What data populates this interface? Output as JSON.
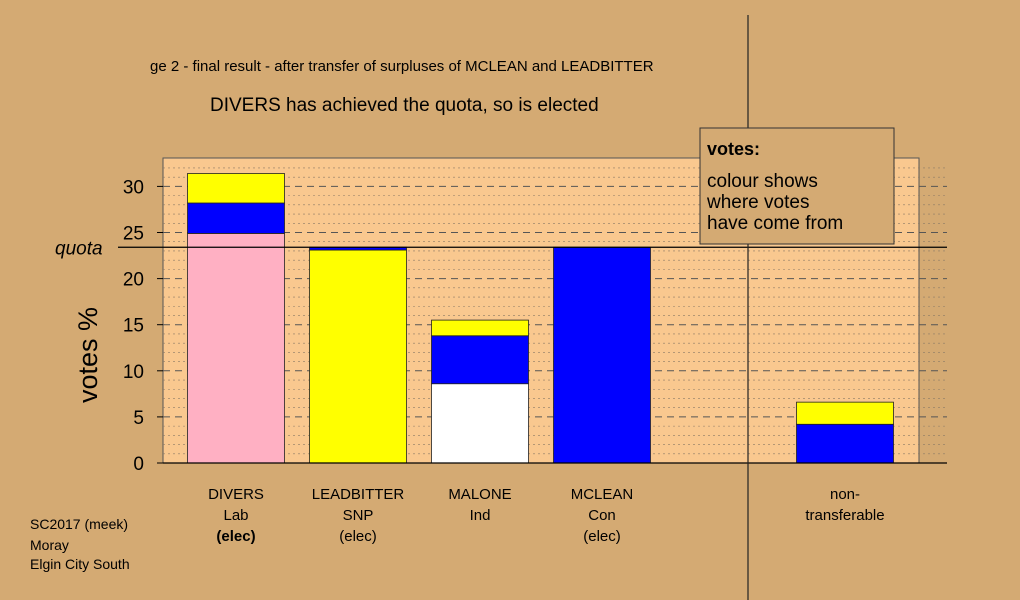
{
  "stage_title": "ge 2 - final result - after transfer of surpluses of MCLEAN and LEADBITTER",
  "subtitle": "DIVERS has achieved the quota, so is elected",
  "ylabel": "votes %",
  "quota_label": "quota",
  "legend": {
    "title": "votes:",
    "lines": [
      "colour shows",
      "where votes",
      "have come from"
    ]
  },
  "footer": [
    "SC2017 (meek)",
    "Moray",
    "Elgin City South"
  ],
  "colors": {
    "background": "#d4aa73",
    "plot_bg": "#f9c88f",
    "lab": "#ffb0c3",
    "snp": "#ffff00",
    "con": "#0000ff",
    "ind": "#ffffff"
  },
  "chart_data": {
    "type": "bar",
    "stacked": true,
    "ylim": [
      0,
      33
    ],
    "yticks": [
      0,
      5,
      10,
      15,
      20,
      25,
      30
    ],
    "quota": 23.4,
    "grid": "dashed horizontal",
    "legend_placement": "top-right",
    "categories": [
      {
        "name": "DIVERS",
        "party": "Lab",
        "status": "(elec)",
        "status_bold": true,
        "segments": [
          {
            "source": "lab",
            "value": 24.9
          },
          {
            "source": "con",
            "value": 3.3
          },
          {
            "source": "snp",
            "value": 3.2
          }
        ]
      },
      {
        "name": "LEADBITTER",
        "party": "SNP",
        "status": "(elec)",
        "status_bold": false,
        "segments": [
          {
            "source": "snp",
            "value": 23.1
          },
          {
            "source": "con",
            "value": 0.3
          }
        ]
      },
      {
        "name": "MALONE",
        "party": "Ind",
        "status": "",
        "status_bold": false,
        "segments": [
          {
            "source": "ind",
            "value": 8.6
          },
          {
            "source": "con",
            "value": 5.2
          },
          {
            "source": "snp",
            "value": 1.7
          }
        ]
      },
      {
        "name": "MCLEAN",
        "party": "Con",
        "status": "(elec)",
        "status_bold": false,
        "segments": [
          {
            "source": "con",
            "value": 23.4
          }
        ]
      },
      {
        "name": "non-",
        "party": "transferable",
        "status": "",
        "status_bold": false,
        "segments": [
          {
            "source": "con",
            "value": 4.2
          },
          {
            "source": "snp",
            "value": 2.4
          }
        ]
      }
    ]
  }
}
